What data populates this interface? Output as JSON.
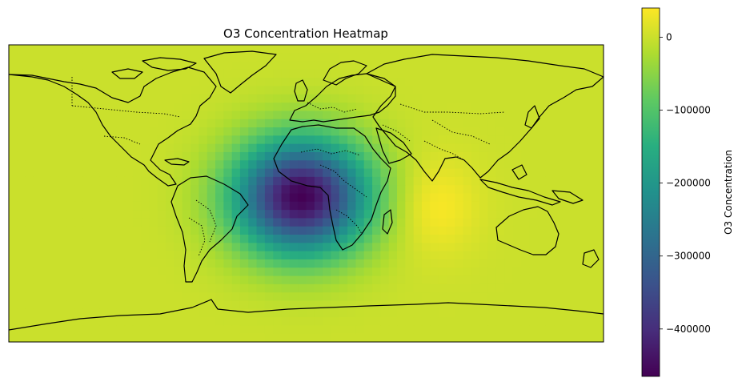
{
  "title": "O3 Concentration Heatmap",
  "colorbar": {
    "label": "O3 Concentration",
    "ticks": [
      0,
      -100000,
      -200000,
      -300000,
      -400000
    ],
    "tick_labels": [
      "0",
      "−100000",
      "−200000",
      "−300000",
      "−400000"
    ],
    "range": [
      -465000,
      40000
    ],
    "colormap": "viridis"
  },
  "chart_data": {
    "type": "heatmap",
    "title": "O3 Concentration Heatmap",
    "projection": "PlateCarree",
    "extent_lon": [
      -180,
      180
    ],
    "extent_lat": [
      -90,
      90
    ],
    "background_value": 0,
    "fields": [
      {
        "kind": "gaussian",
        "center_lon": -3,
        "center_lat": -2,
        "sigma_lon": 28,
        "sigma_lat": 24,
        "amplitude": -465000
      },
      {
        "kind": "gaussian",
        "center_lon": 78,
        "center_lat": -8,
        "sigma_lon": 18,
        "sigma_lat": 20,
        "amplitude": 40000
      }
    ],
    "vmin": -465000,
    "vmax": 40000,
    "colorbar_label": "O3 Concentration"
  }
}
